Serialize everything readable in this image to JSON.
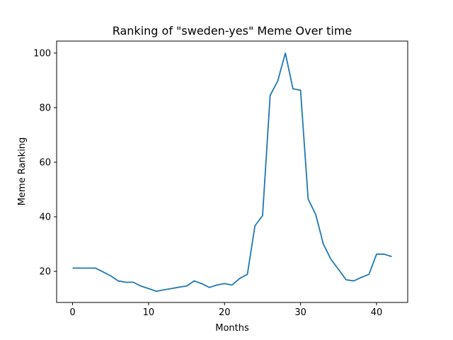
{
  "chart_data": {
    "type": "line",
    "title": "Ranking of \"sweden-yes\" Meme Over time",
    "xlabel": "Months",
    "ylabel": "Meme Ranking",
    "xlim": [
      -2.1,
      44.1
    ],
    "ylim": [
      8.6,
      104.4
    ],
    "xticks": [
      0,
      10,
      20,
      30,
      40
    ],
    "yticks": [
      20,
      40,
      60,
      80,
      100
    ],
    "grid": false,
    "color": "#1f77b4",
    "series": [
      {
        "x": [
          0,
          1,
          2,
          3,
          4,
          5,
          6,
          7,
          8,
          9,
          10,
          11,
          12,
          13,
          14,
          15,
          16,
          17,
          18,
          19,
          20,
          21,
          22,
          23,
          24,
          25,
          26,
          27,
          28,
          29,
          30,
          31,
          32,
          33,
          34,
          35,
          36,
          37,
          38,
          39,
          40,
          41,
          42
        ],
        "values": [
          21.2,
          21.2,
          21.2,
          21.2,
          19.8,
          18.4,
          16.5,
          16.0,
          16.0,
          14.6,
          13.7,
          12.7,
          13.2,
          13.7,
          14.2,
          14.6,
          16.5,
          15.5,
          14.1,
          15.0,
          15.5,
          15.0,
          17.4,
          18.9,
          36.7,
          40.4,
          84.5,
          89.8,
          100.0,
          86.9,
          86.4,
          46.5,
          40.8,
          30.0,
          24.4,
          20.7,
          16.9,
          16.5,
          17.8,
          18.9,
          26.3,
          26.3,
          25.4
        ]
      }
    ]
  }
}
